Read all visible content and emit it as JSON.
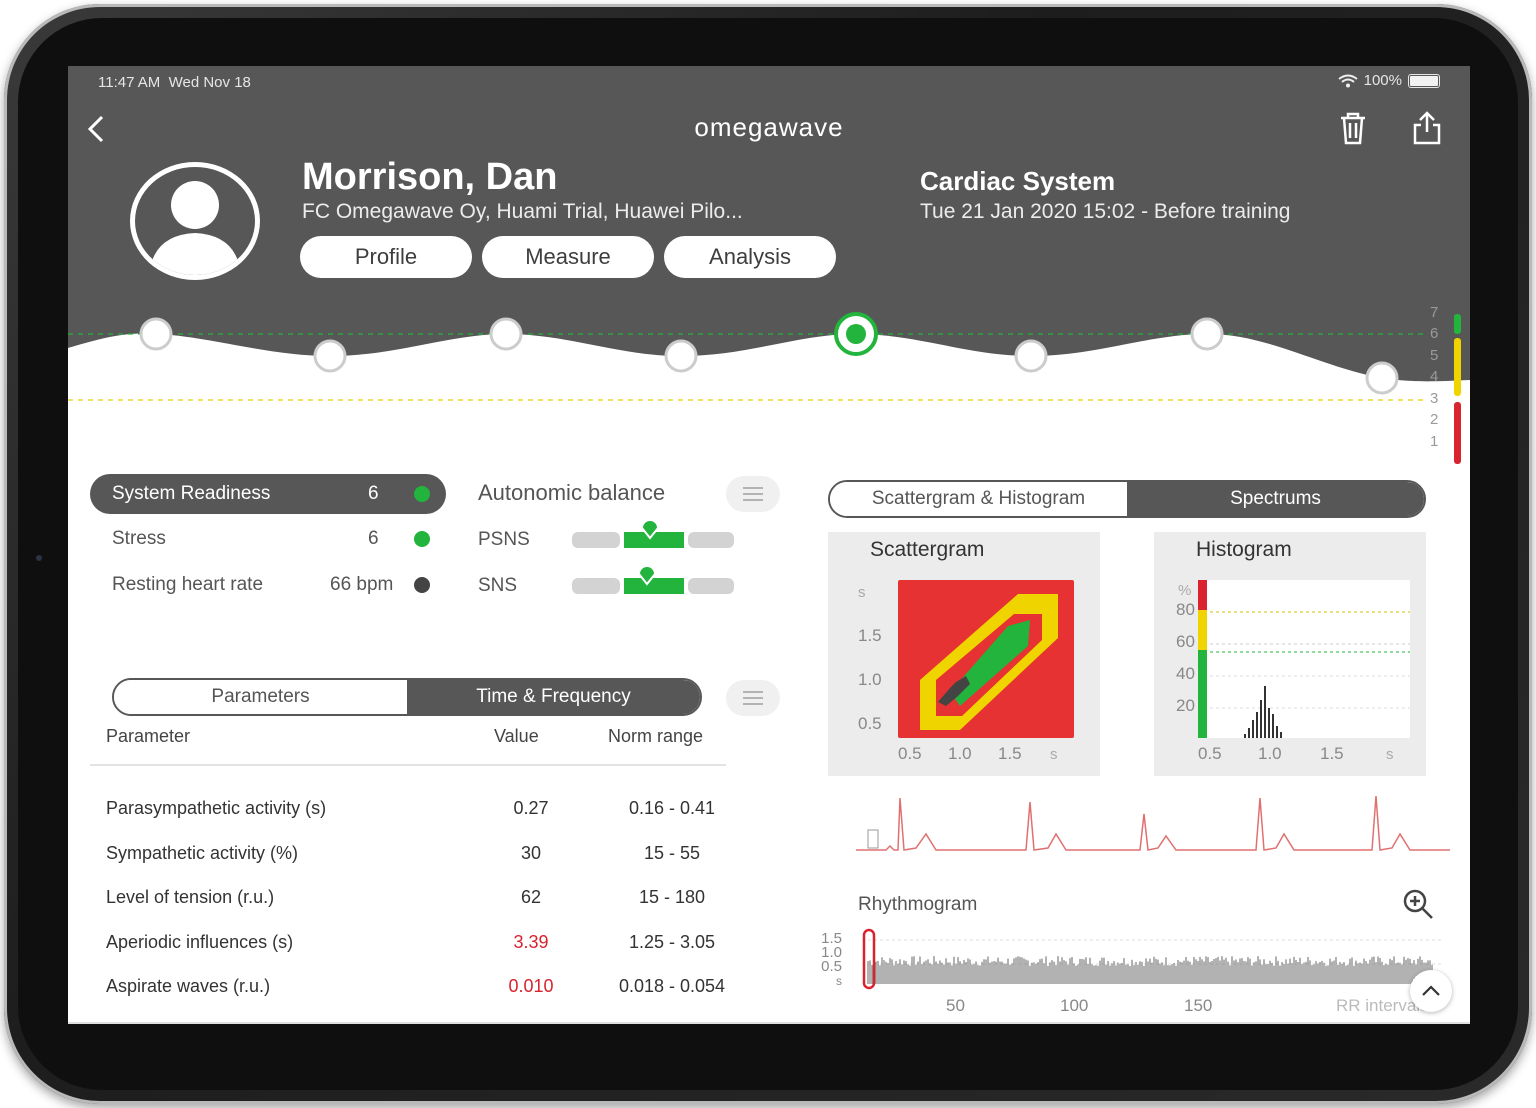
{
  "status": {
    "time": "11:47 AM",
    "date": "Wed Nov 18",
    "battery": "100%"
  },
  "header": {
    "logo": "omegawave",
    "name": "Morrison, Dan",
    "team": "FC Omegawave Oy, Huami Trial, Huawei Pilo...",
    "tabs": [
      "Profile",
      "Measure",
      "Analysis"
    ],
    "system": "Cardiac System",
    "session": "Tue 21 Jan 2020 15:02 - Before training"
  },
  "timeline": {
    "scale": [
      "7",
      "6",
      "5",
      "4",
      "3",
      "2",
      "1"
    ],
    "levels": [
      6,
      5,
      6,
      5,
      6,
      5,
      6,
      4
    ],
    "selected_index": 4
  },
  "readiness": {
    "title": "System Readiness",
    "value": "6",
    "rows": [
      {
        "label": "Stress",
        "value": "6",
        "color": "#22b43c"
      },
      {
        "label": "Resting heart rate",
        "value": "66 bpm",
        "color": "#444444"
      }
    ],
    "color": "#22b43c"
  },
  "autonomic": {
    "title": "Autonomic balance",
    "rows": [
      {
        "label": "PSNS"
      },
      {
        "label": "SNS"
      }
    ]
  },
  "param_tabs": {
    "left": "Parameters",
    "right": "Time & Frequency"
  },
  "table": {
    "headers": [
      "Parameter",
      "Value",
      "Norm range"
    ],
    "rows": [
      {
        "param": "Parasympathetic activity (s)",
        "value": "0.27",
        "norm": "0.16 - 0.41",
        "alert": false
      },
      {
        "param": "Sympathetic activity (%)",
        "value": "30",
        "norm": "15 - 55",
        "alert": false
      },
      {
        "param": "Level of tension (r.u.)",
        "value": "62",
        "norm": "15 - 180",
        "alert": false
      },
      {
        "param": "Aperiodic influences (s)",
        "value": "3.39",
        "norm": "1.25 - 3.05",
        "alert": true
      },
      {
        "param": "Aspirate waves (r.u.)",
        "value": "0.010",
        "norm": "0.018 - 0.054",
        "alert": true
      }
    ]
  },
  "chart_tabs": {
    "left": "Scattergram & Histogram",
    "right": "Spectrums"
  },
  "scattergram": {
    "title": "Scattergram",
    "unit": "s",
    "y_ticks": [
      "1.5",
      "1.0",
      "0.5"
    ],
    "x_ticks": [
      "0.5",
      "1.0",
      "1.5"
    ],
    "x_unit": "s"
  },
  "histogram": {
    "title": "Histogram",
    "unit": "%",
    "y_ticks": [
      "80",
      "60",
      "40",
      "20"
    ],
    "x_ticks": [
      "0.5",
      "1.0",
      "1.5"
    ],
    "x_unit": "s"
  },
  "rhythmogram": {
    "title": "Rhythmogram",
    "y_ticks": [
      "1.5",
      "1.0",
      "0.5",
      "s"
    ],
    "x_ticks": [
      "50",
      "100",
      "150"
    ],
    "x_label": "RR intervals"
  },
  "colors": {
    "accent": "#22b43c",
    "header": "#575757",
    "alert": "#d9232e",
    "yellow": "#f0d400"
  }
}
